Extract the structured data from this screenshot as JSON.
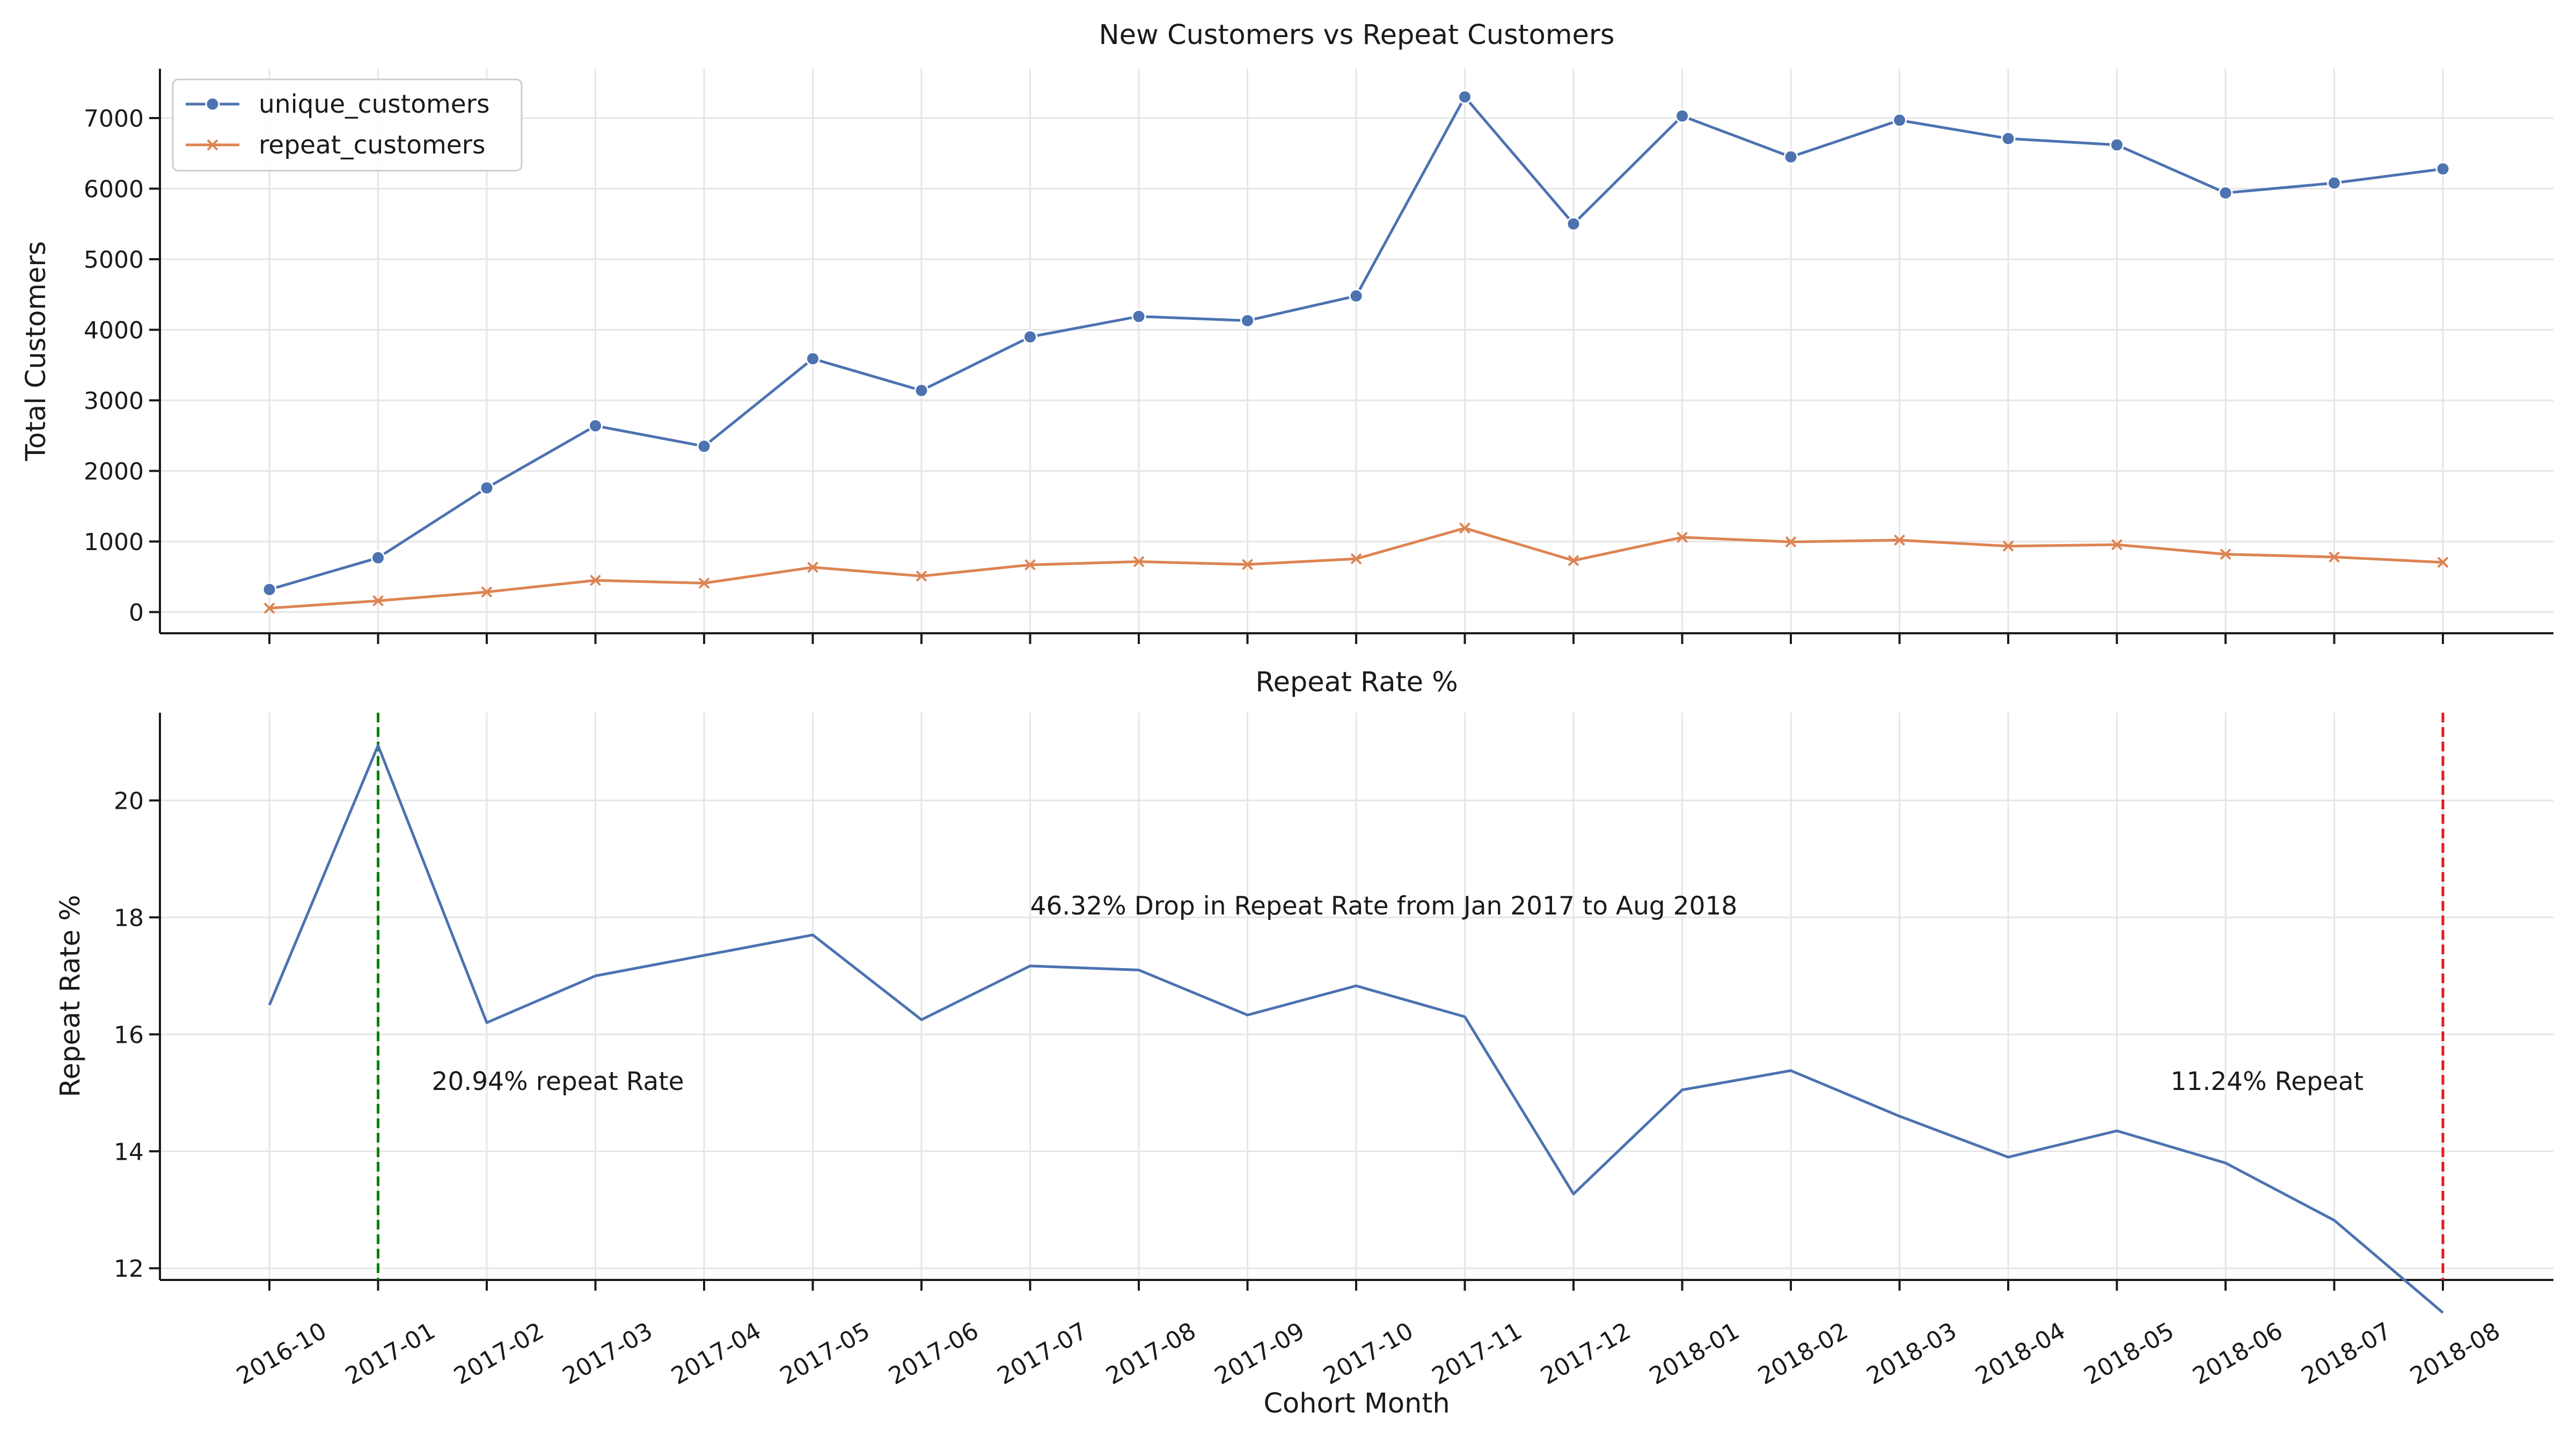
{
  "chart_data": [
    {
      "type": "line",
      "title": "New Customers vs Repeat Customers",
      "xlabel": "",
      "ylabel": "Total Customers",
      "ylim": [
        -300,
        7700
      ],
      "yticks": [
        0,
        1000,
        2000,
        3000,
        4000,
        5000,
        6000,
        7000
      ],
      "grid": true,
      "legend_position": "top-left",
      "categories": [
        "2016-10",
        "2017-01",
        "2017-02",
        "2017-03",
        "2017-04",
        "2017-05",
        "2017-06",
        "2017-07",
        "2017-08",
        "2017-09",
        "2017-10",
        "2017-11",
        "2017-12",
        "2018-01",
        "2018-02",
        "2018-03",
        "2018-04",
        "2018-05",
        "2018-06",
        "2018-07",
        "2018-08"
      ],
      "series": [
        {
          "name": "unique_customers",
          "color": "#4c72b0",
          "marker": "circle",
          "values": [
            320,
            770,
            1760,
            2640,
            2350,
            3590,
            3140,
            3900,
            4190,
            4130,
            4480,
            7300,
            5500,
            7030,
            6450,
            6970,
            6710,
            6620,
            5940,
            6080,
            6280
          ]
        },
        {
          "name": "repeat_customers",
          "color": "#dd8452",
          "marker": "x",
          "values": [
            55,
            160,
            285,
            450,
            410,
            635,
            510,
            670,
            715,
            675,
            755,
            1190,
            730,
            1060,
            995,
            1020,
            935,
            955,
            820,
            780,
            705
          ]
        }
      ]
    },
    {
      "type": "line",
      "title": "Repeat Rate %",
      "xlabel": "Cohort Month",
      "ylabel": "Repeat Rate %",
      "ylim": [
        11.8,
        21.5
      ],
      "yticks": [
        12,
        14,
        16,
        18,
        20
      ],
      "grid": true,
      "categories": [
        "2016-10",
        "2017-01",
        "2017-02",
        "2017-03",
        "2017-04",
        "2017-05",
        "2017-06",
        "2017-07",
        "2017-08",
        "2017-09",
        "2017-10",
        "2017-11",
        "2017-12",
        "2018-01",
        "2018-02",
        "2018-03",
        "2018-04",
        "2018-05",
        "2018-06",
        "2018-07",
        "2018-08"
      ],
      "series": [
        {
          "color": "#4c72b0",
          "values": [
            16.5,
            20.94,
            16.2,
            17.0,
            17.35,
            17.7,
            16.25,
            17.17,
            17.1,
            16.33,
            16.83,
            16.3,
            13.27,
            15.05,
            15.38,
            14.6,
            13.9,
            14.35,
            13.8,
            12.82,
            11.24
          ]
        }
      ],
      "vlines": [
        {
          "category": "2017-01",
          "color": "#008000"
        },
        {
          "category": "2018-08",
          "color": "#e41a1c"
        }
      ],
      "annotations": [
        {
          "text": "46.32% Drop in Repeat Rate from Jan 2017 to Aug 2018",
          "x": "2017-07",
          "y": 18.05,
          "color": "#000000"
        },
        {
          "text": "20.94% repeat Rate",
          "x": "2017-01",
          "y": 15.05,
          "color": "#008000"
        },
        {
          "text": "11.24% Repeat",
          "x": "2018-05",
          "y": 15.05,
          "color": "#e41a1c"
        }
      ]
    }
  ]
}
